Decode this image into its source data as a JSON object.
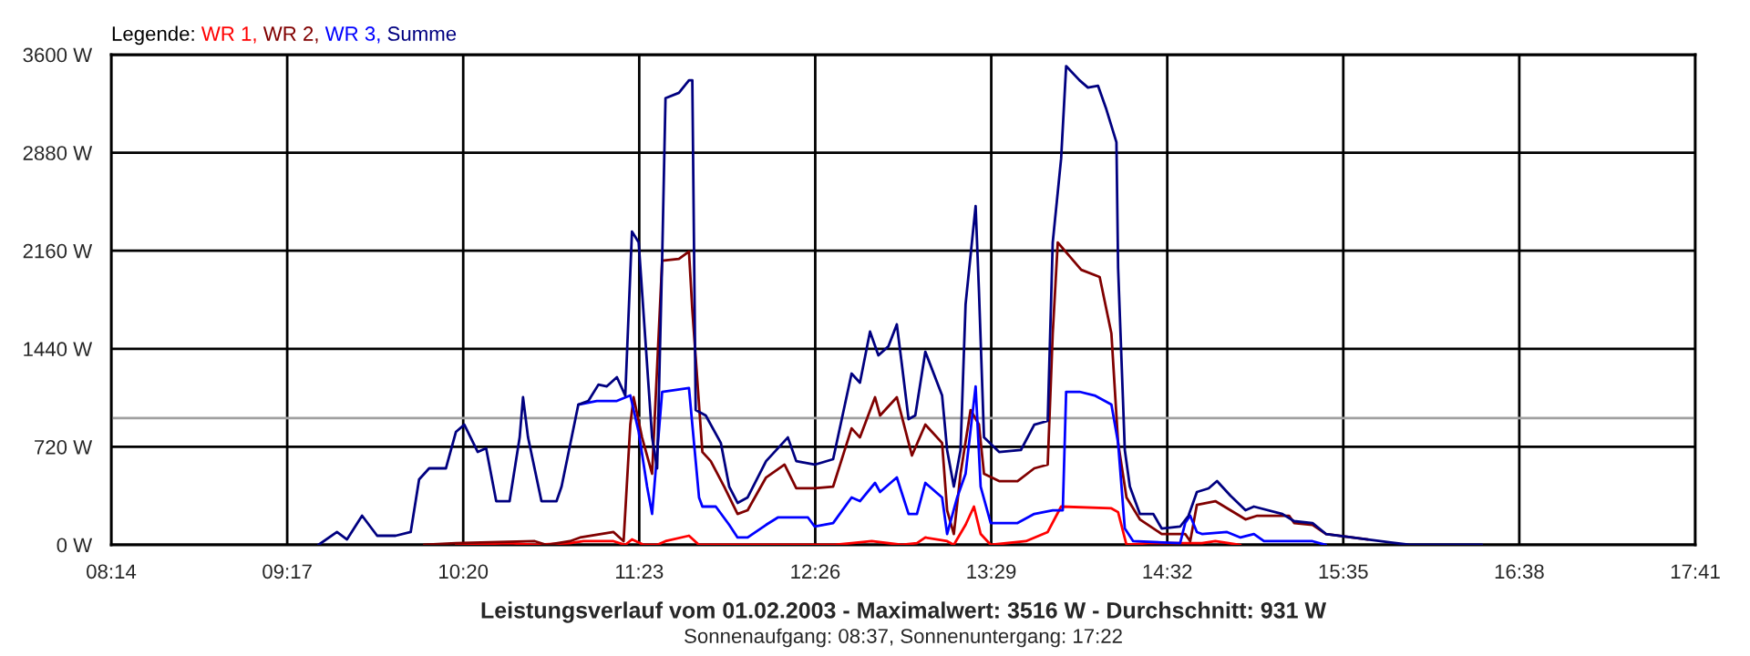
{
  "chart_data": {
    "type": "line",
    "title": "Leistungsverlauf vom 01.02.2003 - Maximalwert: 3516 W - Durchschnitt: 931 W",
    "subtitle": "Sonnenaufgang: 08:37, Sonnenuntergang: 17:22",
    "legend_title": "Legende:",
    "legend": "top left",
    "grid": true,
    "marker": "none",
    "line_style": "solid",
    "xlim": [
      8.2333,
      17.6833
    ],
    "xticks": [
      {
        "value": 8.2333,
        "label": "08:14"
      },
      {
        "value": 9.2833,
        "label": "09:17"
      },
      {
        "value": 10.3333,
        "label": "10:20"
      },
      {
        "value": 11.3833,
        "label": "11:23"
      },
      {
        "value": 12.4333,
        "label": "12:26"
      },
      {
        "value": 13.4833,
        "label": "13:29"
      },
      {
        "value": 14.5333,
        "label": "14:32"
      },
      {
        "value": 15.5833,
        "label": "15:35"
      },
      {
        "value": 16.6333,
        "label": "16:38"
      },
      {
        "value": 17.6833,
        "label": "17:41"
      }
    ],
    "ylim": [
      0,
      3600
    ],
    "yticks": [
      {
        "value": 0,
        "label": "0 W"
      },
      {
        "value": 720,
        "label": "720 W"
      },
      {
        "value": 1440,
        "label": "1440 W"
      },
      {
        "value": 2160,
        "label": "2160 W"
      },
      {
        "value": 2880,
        "label": "2880 W"
      },
      {
        "value": 3600,
        "label": "3600 W"
      }
    ],
    "ref_lines": [
      {
        "axis": "y",
        "value": 931,
        "color": "#a0a0a0"
      }
    ],
    "series": [
      {
        "name": "WR 1,",
        "color": "#ff0000",
        "x": [
          10.29,
          10.61,
          10.76,
          10.97,
          11.05,
          11.23,
          11.3,
          11.34,
          11.41,
          11.49,
          11.54,
          11.68,
          11.74,
          12.55,
          12.65,
          12.77,
          12.95,
          13.04,
          13.09,
          13.22,
          13.26,
          13.33,
          13.38,
          13.42,
          13.48,
          13.69,
          13.82,
          13.9,
          14.2,
          14.24,
          14.29,
          14.42,
          14.74,
          14.82,
          14.97
        ],
        "values": [
          0,
          13,
          0,
          13,
          27,
          27,
          0,
          40,
          0,
          0,
          27,
          67,
          0,
          0,
          13,
          27,
          0,
          13,
          54,
          27,
          0,
          147,
          281,
          80,
          0,
          27,
          94,
          281,
          268,
          240,
          0,
          13,
          13,
          27,
          0
        ]
      },
      {
        "name": "WR 2,",
        "color": "#800000",
        "x": [
          10.1,
          10.29,
          10.76,
          10.83,
          10.97,
          11.03,
          11.23,
          11.29,
          11.33,
          11.35,
          11.4,
          11.46,
          11.52,
          11.62,
          11.68,
          11.7,
          11.76,
          11.81,
          11.89,
          11.97,
          12.03,
          12.14,
          12.25,
          12.32,
          12.43,
          12.54,
          12.65,
          12.7,
          12.79,
          12.82,
          12.92,
          13.01,
          13.09,
          13.19,
          13.22,
          13.26,
          13.3,
          13.36,
          13.41,
          13.44,
          13.53,
          13.64,
          13.74,
          13.82,
          13.85,
          13.88,
          14.02,
          14.13,
          14.2,
          14.24,
          14.29,
          14.37,
          14.5,
          14.64,
          14.67,
          14.71,
          14.82,
          14.91,
          15.0,
          15.07,
          15.26,
          15.29,
          15.4,
          15.48,
          15.73
        ],
        "values": [
          0,
          13,
          27,
          0,
          27,
          54,
          94,
          27,
          883,
          1084,
          789,
          522,
          2087,
          2101,
          2154,
          1726,
          682,
          615,
          428,
          227,
          254,
          495,
          589,
          415,
          415,
          428,
          856,
          789,
          1084,
          950,
          1084,
          656,
          883,
          749,
          254,
          80,
          522,
          990,
          883,
          522,
          468,
          468,
          562,
          589,
          1552,
          2221,
          2020,
          1967,
          1552,
          749,
          348,
          187,
          80,
          80,
          27,
          294,
          321,
          254,
          187,
          214,
          214,
          160,
          147,
          80,
          40
        ]
      },
      {
        "name": "WR 3,",
        "color": "#0000ff",
        "x": [
          11.02,
          11.13,
          11.25,
          11.33,
          11.38,
          11.43,
          11.46,
          11.52,
          11.68,
          11.74,
          11.76,
          11.84,
          11.92,
          11.97,
          12.03,
          12.14,
          12.21,
          12.39,
          12.43,
          12.54,
          12.65,
          12.7,
          12.79,
          12.82,
          12.92,
          12.99,
          13.04,
          13.09,
          13.19,
          13.22,
          13.28,
          13.33,
          13.39,
          13.42,
          13.48,
          13.64,
          13.74,
          13.85,
          13.91,
          13.93,
          14.01,
          14.1,
          14.2,
          14.24,
          14.28,
          14.33,
          14.61,
          14.64,
          14.67,
          14.71,
          14.74,
          14.89,
          14.97,
          15.05,
          15.11,
          15.4,
          15.48
        ],
        "values": [
          1030,
          1057,
          1057,
          1097,
          830,
          428,
          227,
          1124,
          1151,
          348,
          281,
          281,
          147,
          54,
          54,
          147,
          201,
          201,
          134,
          160,
          348,
          321,
          455,
          388,
          495,
          227,
          227,
          455,
          348,
          80,
          348,
          522,
          1164,
          428,
          160,
          160,
          227,
          254,
          254,
          1124,
          1124,
          1097,
          1030,
          749,
          120,
          27,
          13,
          160,
          214,
          94,
          80,
          94,
          54,
          80,
          27,
          27,
          0
        ]
      },
      {
        "name": "Summe",
        "color": "#000080",
        "x": [
          9.47,
          9.58,
          9.64,
          9.73,
          9.82,
          9.93,
          10.02,
          10.07,
          10.13,
          10.23,
          10.29,
          10.34,
          10.42,
          10.47,
          10.53,
          10.61,
          10.67,
          10.69,
          10.72,
          10.8,
          10.89,
          10.92,
          11.02,
          11.08,
          11.14,
          11.19,
          11.25,
          11.3,
          11.34,
          11.38,
          11.46,
          11.49,
          11.52,
          11.54,
          11.62,
          11.68,
          11.7,
          11.72,
          11.78,
          11.87,
          11.92,
          11.97,
          12.03,
          12.14,
          12.27,
          12.32,
          12.43,
          12.54,
          12.65,
          12.7,
          12.76,
          12.81,
          12.87,
          12.92,
          12.95,
          12.99,
          13.03,
          13.09,
          13.19,
          13.22,
          13.26,
          13.3,
          13.33,
          13.39,
          13.41,
          13.44,
          13.53,
          13.66,
          13.74,
          13.82,
          13.85,
          13.9,
          13.93,
          14.01,
          14.06,
          14.12,
          14.17,
          14.23,
          14.24,
          14.28,
          14.31,
          14.37,
          14.45,
          14.5,
          14.61,
          14.66,
          14.71,
          14.78,
          14.83,
          14.91,
          15.0,
          15.05,
          15.22,
          15.29,
          15.4,
          15.48,
          15.73,
          15.98,
          16.41
        ],
        "values": [
          0,
          94,
          40,
          214,
          67,
          67,
          94,
          480,
          562,
          562,
          830,
          883,
          682,
          709,
          321,
          321,
          789,
          1084,
          789,
          321,
          321,
          428,
          1030,
          1057,
          1177,
          1164,
          1231,
          1097,
          2301,
          2221,
          789,
          562,
          2100,
          3280,
          3320,
          3412,
          3412,
          990,
          950,
          749,
          428,
          308,
          348,
          615,
          789,
          615,
          589,
          629,
          1258,
          1191,
          1566,
          1392,
          1458,
          1619,
          1325,
          923,
          950,
          1418,
          1097,
          696,
          428,
          696,
          1766,
          2489,
          1860,
          789,
          682,
          696,
          883,
          910,
          2221,
          2836,
          3516,
          3412,
          3358,
          3372,
          3198,
          2957,
          2034,
          696,
          428,
          227,
          227,
          120,
          134,
          214,
          388,
          415,
          468,
          361,
          254,
          281,
          227,
          174,
          160,
          80,
          40,
          0,
          0
        ]
      }
    ]
  }
}
